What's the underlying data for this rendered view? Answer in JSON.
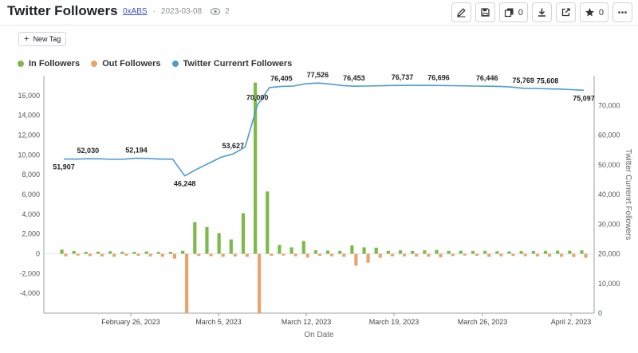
{
  "header": {
    "title": "Twitter Followers",
    "author": "0xABS",
    "date": "2023-03-08",
    "views": "2",
    "toolbar": [
      {
        "name": "edit-button",
        "icon": "pencil-icon",
        "count": ""
      },
      {
        "name": "save-button",
        "icon": "floppy-icon",
        "count": ""
      },
      {
        "name": "copies-button",
        "icon": "copy-icon",
        "count": "0"
      },
      {
        "name": "download-button",
        "icon": "download-icon",
        "count": ""
      },
      {
        "name": "share-button",
        "icon": "external-link-icon",
        "count": ""
      },
      {
        "name": "star-button",
        "icon": "star-icon",
        "count": "0"
      },
      {
        "name": "more-button",
        "icon": "more-icon",
        "count": ""
      }
    ]
  },
  "new_tag_label": "New Tag",
  "chart_data": {
    "type": "bar",
    "xlabel": "On Date",
    "y2label": "Twitter Currenrt Followers",
    "ylim": [
      -6000,
      18000
    ],
    "y2lim": [
      0,
      80000
    ],
    "y_ticks": [
      "16,000",
      "14,000",
      "12,000",
      "10,000",
      "8,000",
      "6,000",
      "4,000",
      "2,000",
      "0",
      "-2,000",
      "-4,000"
    ],
    "y2_ticks": [
      "70,000",
      "60,000",
      "50,000",
      "40,000",
      "30,000",
      "20,000",
      "10,000",
      "0"
    ],
    "x_ticks": [
      "February 26, 2023",
      "March 5, 2023",
      "March 12, 2023",
      "March 19, 2023",
      "March 26, 2023",
      "April 2, 2023"
    ],
    "legend": [
      "In Followers",
      "Out Followers",
      "Twitter Currenrt Followers"
    ],
    "legend_position": "top-left",
    "colors": {
      "in": "#7cbb4a",
      "out": "#e9a46d",
      "line": "#4c9bd4"
    },
    "in_followers": [
      430,
      280,
      200,
      220,
      260,
      210,
      200,
      240,
      190,
      200,
      300,
      3200,
      2700,
      2100,
      1450,
      4100,
      17300,
      6300,
      900,
      650,
      1300,
      350,
      330,
      300,
      850,
      650,
      620,
      300,
      350,
      280,
      350,
      390,
      300,
      310,
      280,
      300,
      260,
      250,
      270,
      280,
      300,
      320,
      310,
      350
    ],
    "out_followers": [
      -250,
      -180,
      -230,
      -260,
      -300,
      -190,
      -200,
      -260,
      -300,
      -500,
      -6000,
      -220,
      -240,
      -300,
      -270,
      -300,
      -6000,
      -200,
      -180,
      -250,
      -380,
      -200,
      -250,
      -300,
      -1200,
      -900,
      -400,
      -250,
      -260,
      -280,
      -300,
      -350,
      -230,
      -180,
      -200,
      -300,
      -250,
      -220,
      -240,
      -260,
      -280,
      -300,
      -320,
      -400
    ],
    "line_values": [
      51907,
      51900,
      52030,
      52000,
      51800,
      51900,
      52194,
      52100,
      51900,
      51900,
      46248,
      48500,
      50500,
      52500,
      53627,
      56000,
      70000,
      76000,
      76405,
      76500,
      77300,
      77526,
      77200,
      76700,
      76453,
      76500,
      76600,
      76700,
      76737,
      76750,
      76720,
      76696,
      76650,
      76600,
      76500,
      76446,
      76400,
      76200,
      75769,
      75700,
      75608,
      75500,
      75300,
      75097
    ],
    "point_labels": [
      {
        "i": 0,
        "text": "51,907",
        "pos": "below"
      },
      {
        "i": 2,
        "text": "52,030",
        "pos": "above"
      },
      {
        "i": 6,
        "text": "52,194",
        "pos": "above"
      },
      {
        "i": 10,
        "text": "46,248",
        "pos": "below"
      },
      {
        "i": 14,
        "text": "53,627",
        "pos": "above"
      },
      {
        "i": 16,
        "text": "70,000",
        "pos": "above"
      },
      {
        "i": 18,
        "text": "76,405",
        "pos": "above"
      },
      {
        "i": 21,
        "text": "77,526",
        "pos": "above"
      },
      {
        "i": 24,
        "text": "76,453",
        "pos": "above"
      },
      {
        "i": 28,
        "text": "76,737",
        "pos": "above"
      },
      {
        "i": 31,
        "text": "76,696",
        "pos": "above"
      },
      {
        "i": 35,
        "text": "76,446",
        "pos": "above"
      },
      {
        "i": 38,
        "text": "75,769",
        "pos": "above"
      },
      {
        "i": 40,
        "text": "75,608",
        "pos": "above"
      },
      {
        "i": 43,
        "text": "75,097",
        "pos": "below"
      }
    ]
  }
}
